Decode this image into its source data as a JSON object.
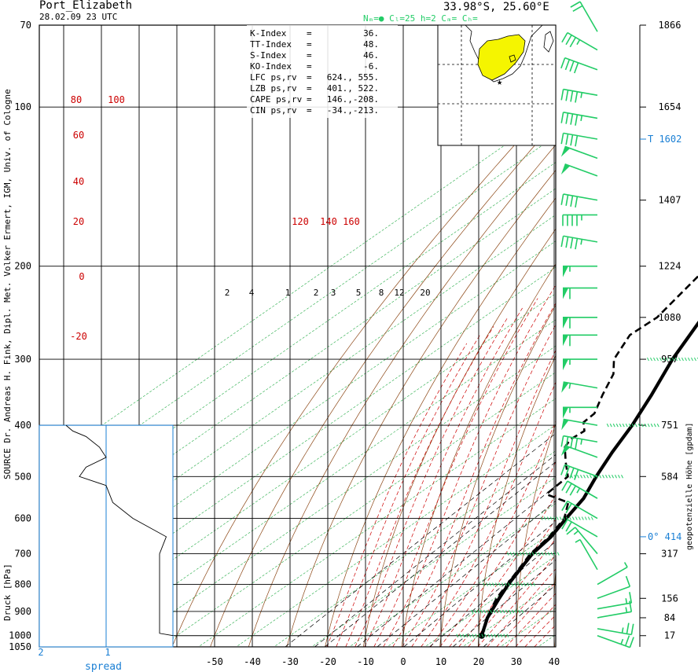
{
  "header": {
    "station": "Port_Elizabeth",
    "datetime": "28.02.09  23 UTC",
    "coords": "33.98°S, 25.60°E",
    "cloud_info": "Nₘ=●  Cₗ=25  h=2   Cₘ=    Cₕ="
  },
  "side_labels": {
    "left_credit": "SOURCE Dr. Andreas H. Fink, Dipl. Met. Volker Ermert, IGM, Univ. of Cologne",
    "right_axis": "geopotenzielle Höhe [gpdam]",
    "pressure_axis": "Druck [hPa]",
    "spread_label": "spread"
  },
  "indices": [
    {
      "name": "K-Index",
      "eq": "=",
      "value": "36."
    },
    {
      "name": "TT-Index",
      "eq": "=",
      "value": "48."
    },
    {
      "name": "S-Index",
      "eq": "=",
      "value": "46."
    },
    {
      "name": "KO-Index",
      "eq": "=",
      "value": "-6."
    },
    {
      "name": "LFC  ps,rv",
      "eq": "=",
      "value": "624., 555."
    },
    {
      "name": "LZB  ps,rv",
      "eq": "=",
      "value": "401., 522."
    },
    {
      "name": "CAPE ps,rv",
      "eq": "=",
      "value": "146.,-208."
    },
    {
      "name": "CIN  ps,rv",
      "eq": "=",
      "value": "-34.,-213."
    }
  ],
  "colors": {
    "temperature": "#000000",
    "dewpoint": "#000000",
    "dry_adiabat": "#8b4513",
    "moist_adiabat": "#cc0000",
    "isotherm_skew": "#22aa44",
    "wind_barb": "#22cc66",
    "axis_blue": "#1a7fd4",
    "map_land": "#f5f500"
  },
  "chart_data": {
    "type": "line",
    "title": "Port_Elizabeth",
    "xlabel": "",
    "ylabel": "Druck [hPa]",
    "xlim": [
      -60,
      40
    ],
    "pressure_ticks": [
      70,
      100,
      200,
      300,
      400,
      500,
      600,
      700,
      800,
      900,
      1000,
      1050
    ],
    "temperature_ticks": [
      -50,
      -40,
      -30,
      -20,
      -10,
      0,
      10,
      20,
      30,
      40
    ],
    "spread_ticks": [
      2,
      1
    ],
    "height_ticks": [
      {
        "p": 70,
        "label": "1866"
      },
      {
        "p": 100,
        "label": "1654"
      },
      {
        "p": 150,
        "label": "1407"
      },
      {
        "p": 200,
        "label": "1224"
      },
      {
        "p": 250,
        "label": "1080"
      },
      {
        "p": 300,
        "label": "957"
      },
      {
        "p": 400,
        "label": "751"
      },
      {
        "p": 500,
        "label": "584"
      },
      {
        "p": 700,
        "label": "317"
      },
      {
        "p": 850,
        "label": "156"
      },
      {
        "p": 925,
        "label": "84"
      },
      {
        "p": 1000,
        "label": "17"
      }
    ],
    "special_levels": [
      {
        "p": 115,
        "label": "T   1602",
        "color": "#1a7fd4"
      },
      {
        "p": 650,
        "label": "0°  414",
        "color": "#1a7fd4"
      }
    ],
    "dry_adiabat_labels": [
      "80",
      "100",
      "60",
      "40",
      "20",
      "0",
      "-20"
    ],
    "moist_adiabat_labels": [
      "120",
      "140",
      "160"
    ],
    "mixing_ratio_labels": [
      "2",
      "4",
      "1",
      "2",
      "3",
      "5",
      "8",
      "12",
      "20"
    ],
    "series": [
      {
        "name": "T",
        "values": [
          {
            "p": 1000,
            "t": 20.8
          },
          {
            "p": 925,
            "t": 15.5
          },
          {
            "p": 850,
            "t": 11.2
          },
          {
            "p": 800,
            "t": 8.3
          },
          {
            "p": 700,
            "t": 3.0
          },
          {
            "p": 650,
            "t": 1.5
          },
          {
            "p": 600,
            "t": -1.5
          },
          {
            "p": 550,
            "t": -4.5
          },
          {
            "p": 500,
            "t": -9.5
          },
          {
            "p": 450,
            "t": -14.5
          },
          {
            "p": 400,
            "t": -19.5
          },
          {
            "p": 350,
            "t": -26.0
          },
          {
            "p": 300,
            "t": -34.0
          },
          {
            "p": 250,
            "t": -42.0
          },
          {
            "p": 200,
            "t": -47.5
          },
          {
            "p": 150,
            "t": -59.0
          },
          {
            "p": 130,
            "t": -62.0
          },
          {
            "p": 100,
            "t": -72.5
          },
          {
            "p": 90,
            "t": -73.0
          },
          {
            "p": 80,
            "t": -73.5
          },
          {
            "p": 70,
            "t": -72.0
          }
        ]
      },
      {
        "name": "Td",
        "values": [
          {
            "p": 1000,
            "t": 20.8
          },
          {
            "p": 925,
            "t": 15.3
          },
          {
            "p": 850,
            "t": 10.5
          },
          {
            "p": 800,
            "t": 8.0
          },
          {
            "p": 700,
            "t": 2.5
          },
          {
            "p": 650,
            "t": 1.0
          },
          {
            "p": 600,
            "t": -2.0
          },
          {
            "p": 560,
            "t": -7.0
          },
          {
            "p": 540,
            "t": -16.0
          },
          {
            "p": 500,
            "t": -17.0
          },
          {
            "p": 470,
            "t": -23.0
          },
          {
            "p": 440,
            "t": -29.0
          },
          {
            "p": 425,
            "t": -30.5
          },
          {
            "p": 410,
            "t": -30.0
          },
          {
            "p": 395,
            "t": -33.5
          },
          {
            "p": 380,
            "t": -34.0
          },
          {
            "p": 350,
            "t": -39.0
          },
          {
            "p": 320,
            "t": -44.0
          },
          {
            "p": 300,
            "t": -49.5
          },
          {
            "p": 270,
            "t": -54.5
          },
          {
            "p": 250,
            "t": -54.0
          },
          {
            "p": 200,
            "t": -60.0
          },
          {
            "p": 150,
            "t": -70.0
          },
          {
            "p": 140,
            "t": -72.0
          },
          {
            "p": 115,
            "t": -79.0
          },
          {
            "p": 100,
            "t": -81.5
          },
          {
            "p": 90,
            "t": -80.0
          },
          {
            "p": 80,
            "t": -77.0
          },
          {
            "p": 70,
            "t": -76.0
          }
        ]
      },
      {
        "name": "spread",
        "values": [
          {
            "p": 1000,
            "s": 0.0
          },
          {
            "p": 990,
            "s": 0.2
          },
          {
            "p": 950,
            "s": 0.2
          },
          {
            "p": 900,
            "s": 0.2
          },
          {
            "p": 850,
            "s": 0.2
          },
          {
            "p": 800,
            "s": 0.2
          },
          {
            "p": 700,
            "s": 0.2
          },
          {
            "p": 650,
            "s": 0.1
          },
          {
            "p": 600,
            "s": 0.6
          },
          {
            "p": 560,
            "s": 0.9
          },
          {
            "p": 520,
            "s": 1.0
          },
          {
            "p": 500,
            "s": 1.4
          },
          {
            "p": 480,
            "s": 1.3
          },
          {
            "p": 460,
            "s": 1.0
          },
          {
            "p": 440,
            "s": 1.1
          },
          {
            "p": 420,
            "s": 1.3
          },
          {
            "p": 410,
            "s": 1.5
          },
          {
            "p": 400,
            "s": 1.6
          }
        ]
      }
    ],
    "wind_barbs": [
      {
        "p": 1000,
        "dir": 110,
        "kt": 25
      },
      {
        "p": 970,
        "dir": 100,
        "kt": 25
      },
      {
        "p": 925,
        "dir": 80,
        "kt": 15
      },
      {
        "p": 890,
        "dir": 80,
        "kt": 15
      },
      {
        "p": 850,
        "dir": 70,
        "kt": 10
      },
      {
        "p": 800,
        "dir": 60,
        "kt": 5
      },
      {
        "p": 750,
        "dir": 330,
        "kt": 5
      },
      {
        "p": 700,
        "dir": 320,
        "kt": 15
      },
      {
        "p": 650,
        "dir": 300,
        "kt": 20
      },
      {
        "p": 600,
        "dir": 300,
        "kt": 20
      },
      {
        "p": 550,
        "dir": 300,
        "kt": 35
      },
      {
        "p": 500,
        "dir": 290,
        "kt": 40
      },
      {
        "p": 460,
        "dir": 290,
        "kt": 50
      },
      {
        "p": 430,
        "dir": 280,
        "kt": 45
      },
      {
        "p": 400,
        "dir": 280,
        "kt": 50
      },
      {
        "p": 370,
        "dir": 270,
        "kt": 55
      },
      {
        "p": 340,
        "dir": 280,
        "kt": 55
      },
      {
        "p": 300,
        "dir": 270,
        "kt": 55
      },
      {
        "p": 270,
        "dir": 270,
        "kt": 60
      },
      {
        "p": 250,
        "dir": 270,
        "kt": 60
      },
      {
        "p": 220,
        "dir": 270,
        "kt": 60
      },
      {
        "p": 200,
        "dir": 270,
        "kt": 55
      },
      {
        "p": 180,
        "dir": 280,
        "kt": 45
      },
      {
        "p": 160,
        "dir": 270,
        "kt": 45
      },
      {
        "p": 150,
        "dir": 280,
        "kt": 40
      },
      {
        "p": 135,
        "dir": 290,
        "kt": 50
      },
      {
        "p": 125,
        "dir": 290,
        "kt": 50
      },
      {
        "p": 115,
        "dir": 280,
        "kt": 40
      },
      {
        "p": 105,
        "dir": 280,
        "kt": 45
      },
      {
        "p": 95,
        "dir": 280,
        "kt": 45
      },
      {
        "p": 85,
        "dir": 290,
        "kt": 40
      },
      {
        "p": 78,
        "dir": 300,
        "kt": 35
      },
      {
        "p": 72,
        "dir": 330,
        "kt": 20
      }
    ]
  },
  "inset_map": {
    "marker": "★",
    "land_color": "#f5f500"
  }
}
